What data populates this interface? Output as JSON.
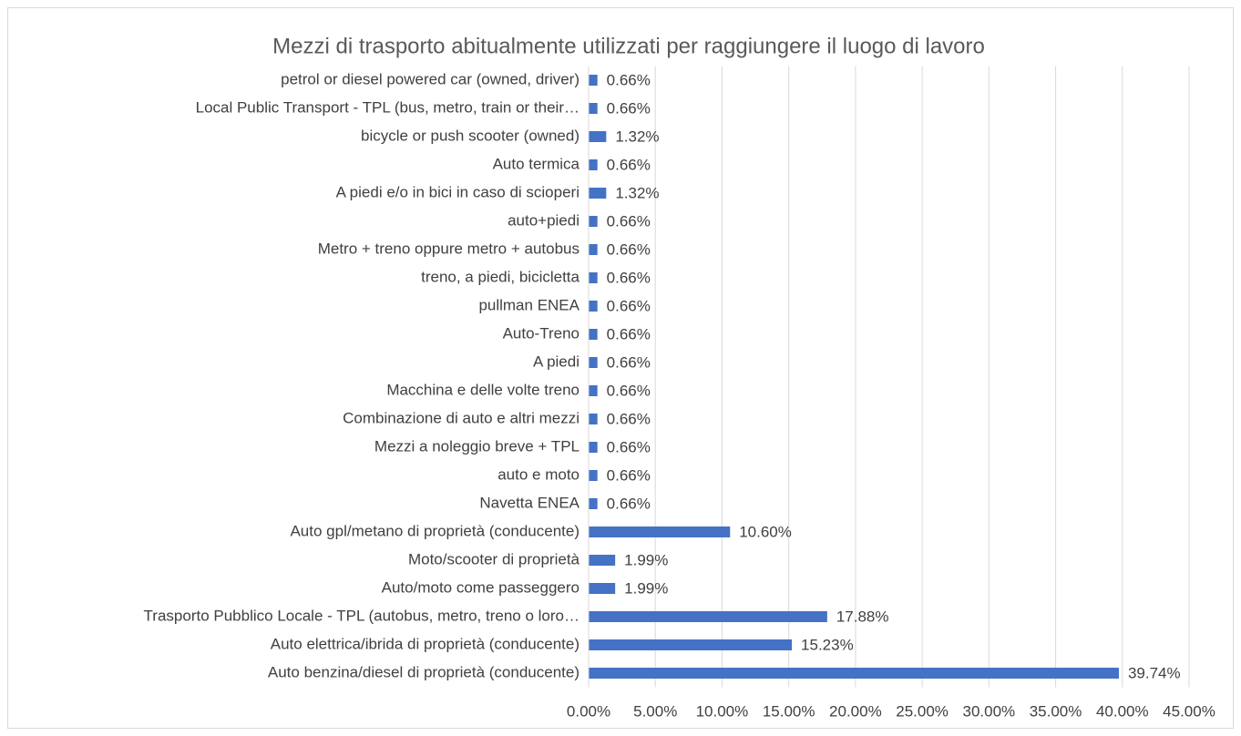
{
  "chart_data": {
    "type": "hbar",
    "title": "Mezzi di trasporto abitualmente utilizzati per raggiungere il luogo di lavoro",
    "categories": [
      "Auto benzina/diesel di proprietà (conducente)",
      "Auto elettrica/ibrida di proprietà (conducente)",
      "Trasporto Pubblico Locale - TPL (autobus, metro, treno o loro…",
      "Auto/moto come passeggero",
      "Moto/scooter di proprietà",
      "Auto gpl/metano di proprietà (conducente)",
      "Navetta ENEA",
      "auto e moto",
      "Mezzi a noleggio breve + TPL",
      "Combinazione di auto e altri mezzi",
      "Macchina e delle volte treno",
      "A piedi",
      "Auto-Treno",
      "pullman ENEA",
      "treno, a piedi, bicicletta",
      "Metro + treno oppure metro + autobus",
      "auto+piedi",
      "A piedi e/o in bici in caso di scioperi",
      "Auto termica",
      "bicycle or push scooter (owned)",
      "Local Public Transport - TPL (bus, metro, train or their…",
      "petrol or diesel powered car (owned, driver)"
    ],
    "values": [
      39.74,
      15.23,
      17.88,
      1.99,
      1.99,
      10.6,
      0.66,
      0.66,
      0.66,
      0.66,
      0.66,
      0.66,
      0.66,
      0.66,
      0.66,
      0.66,
      0.66,
      1.32,
      0.66,
      1.32,
      0.66,
      0.66
    ],
    "value_labels": [
      "39.74%",
      "15.23%",
      "17.88%",
      "1.99%",
      "1.99%",
      "10.60%",
      "0.66%",
      "0.66%",
      "0.66%",
      "0.66%",
      "0.66%",
      "0.66%",
      "0.66%",
      "0.66%",
      "0.66%",
      "0.66%",
      "0.66%",
      "1.32%",
      "0.66%",
      "1.32%",
      "0.66%",
      "0.66%"
    ],
    "color": "#4472c4",
    "xlim": [
      0,
      45
    ],
    "xticks": [
      {
        "value": 0,
        "label": "0.00%"
      },
      {
        "value": 5,
        "label": "5.00%"
      },
      {
        "value": 10,
        "label": "10.00%"
      },
      {
        "value": 15,
        "label": "15.00%"
      },
      {
        "value": 20,
        "label": "20.00%"
      },
      {
        "value": 25,
        "label": "25.00%"
      },
      {
        "value": 30,
        "label": "30.00%"
      },
      {
        "value": 35,
        "label": "35.00%"
      },
      {
        "value": 40,
        "label": "40.00%"
      },
      {
        "value": 45,
        "label": "45.00%"
      }
    ],
    "grid": true
  }
}
